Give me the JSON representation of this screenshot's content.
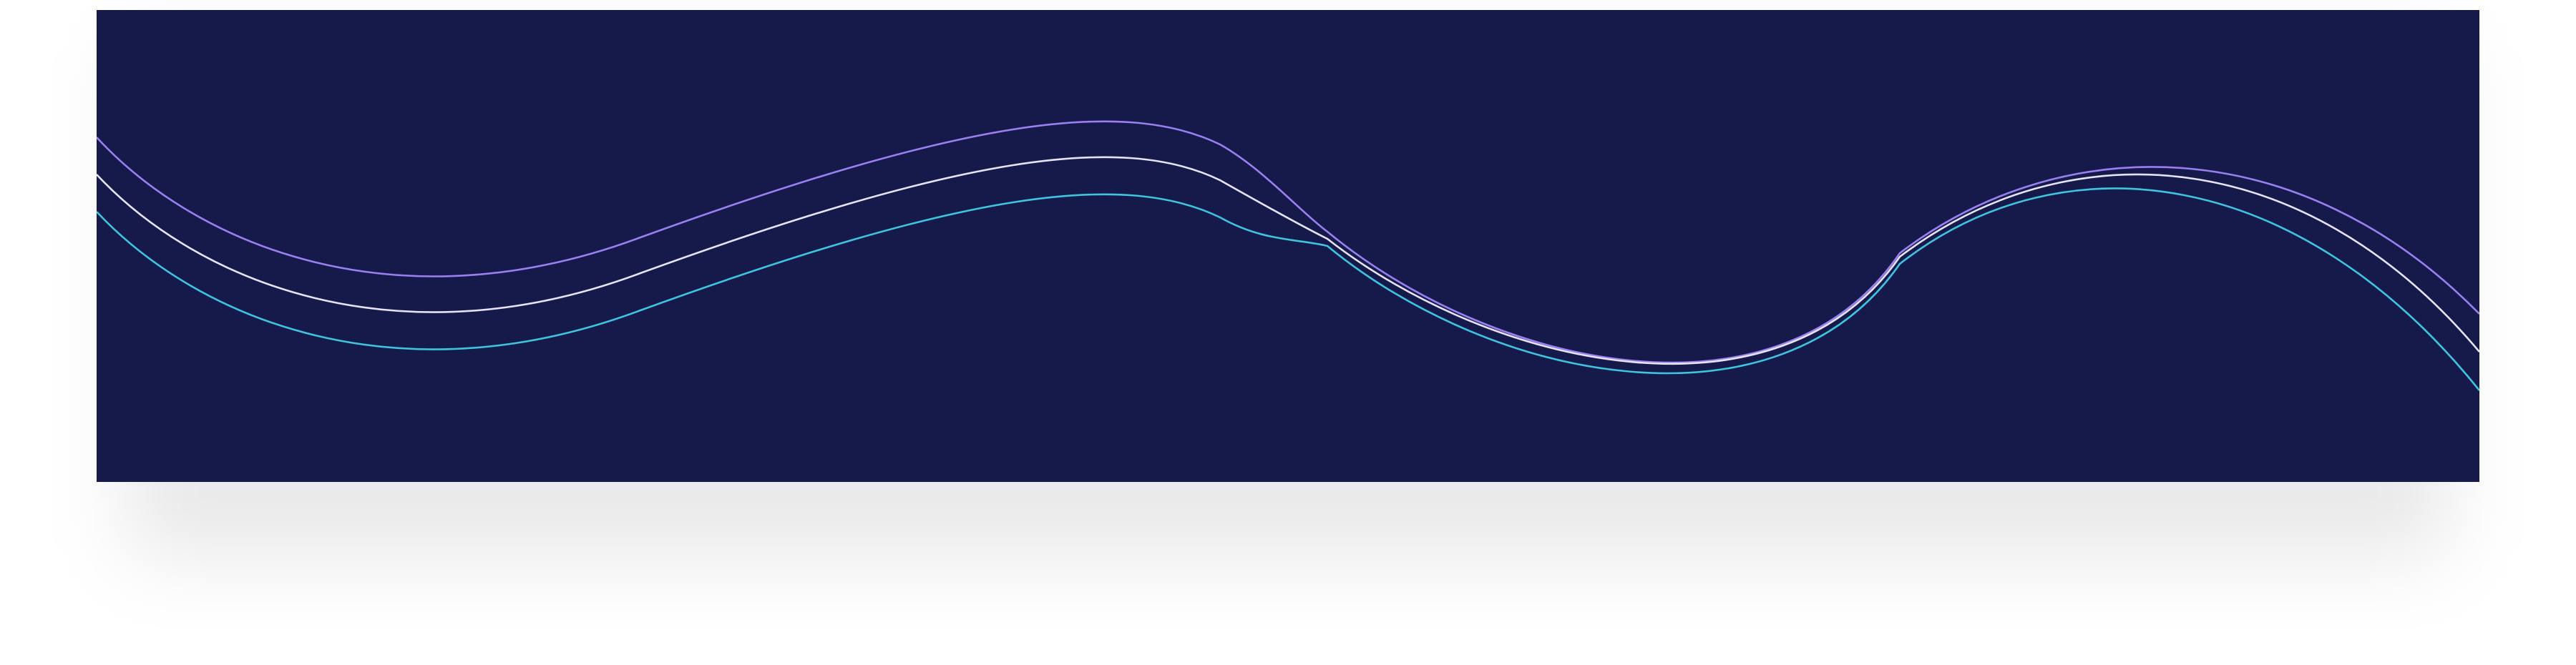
{
  "banner": {
    "background_color": "#151a4a",
    "waves": [
      {
        "color": "#9a7ff0"
      },
      {
        "color": "#e6e3f5"
      },
      {
        "color": "#3fc3df"
      }
    ]
  }
}
